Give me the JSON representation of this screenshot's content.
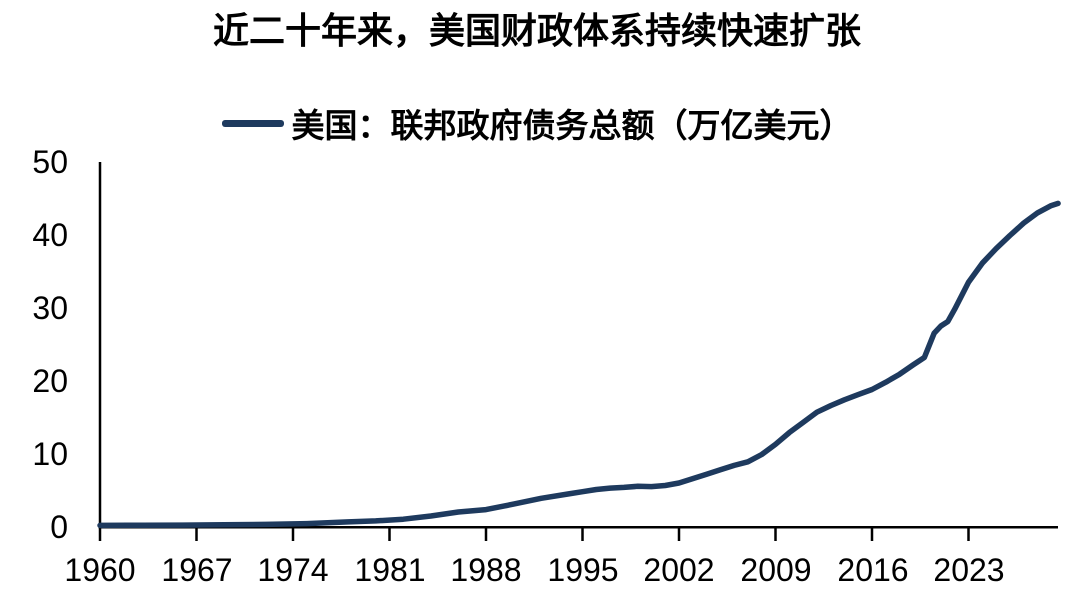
{
  "title": "近二十年来，美国财政体系持续快速扩张",
  "legend": {
    "label": "美国：联邦政府债务总额（万亿美元）"
  },
  "colors": {
    "line": "#1E3A5E",
    "axis": "#000000",
    "text": "#000000",
    "background": "#FFFFFF"
  },
  "chart_data": {
    "type": "line",
    "title": "近二十年来，美国财政体系持续快速扩张",
    "xlabel": "",
    "ylabel": "万亿美元",
    "xlim": [
      1960,
      2029.5
    ],
    "ylim": [
      0,
      50
    ],
    "grid": false,
    "legend_position": "top-center",
    "xticks": [
      1960,
      1967,
      1974,
      1981,
      1988,
      1995,
      2002,
      2009,
      2016,
      2023
    ],
    "xtick_labels": [
      "1960",
      "1967",
      "1974",
      "1981",
      "1988",
      "1995",
      "2002",
      "2009",
      "2016",
      "2023"
    ],
    "yticks": [
      0,
      10,
      20,
      30,
      40,
      50
    ],
    "ytick_labels": [
      "0",
      "10",
      "20",
      "30",
      "40",
      "50"
    ],
    "series": [
      {
        "name": "美国：联邦政府债务总额（万亿美元）",
        "color": "#1E3A5E",
        "points": [
          [
            1960,
            0.29
          ],
          [
            1963,
            0.31
          ],
          [
            1966,
            0.33
          ],
          [
            1969,
            0.37
          ],
          [
            1972,
            0.43
          ],
          [
            1975,
            0.54
          ],
          [
            1978,
            0.77
          ],
          [
            1980,
            0.91
          ],
          [
            1982,
            1.14
          ],
          [
            1984,
            1.57
          ],
          [
            1986,
            2.12
          ],
          [
            1988,
            2.45
          ],
          [
            1990,
            3.2
          ],
          [
            1992,
            4.0
          ],
          [
            1994,
            4.6
          ],
          [
            1995,
            4.9
          ],
          [
            1996,
            5.2
          ],
          [
            1997,
            5.4
          ],
          [
            1998,
            5.5
          ],
          [
            1999,
            5.65
          ],
          [
            2000,
            5.6
          ],
          [
            2001,
            5.75
          ],
          [
            2002,
            6.1
          ],
          [
            2003,
            6.7
          ],
          [
            2004,
            7.3
          ],
          [
            2005,
            7.9
          ],
          [
            2006,
            8.5
          ],
          [
            2007,
            9.0
          ],
          [
            2008,
            10.0
          ],
          [
            2009,
            11.4
          ],
          [
            2010,
            13.0
          ],
          [
            2011,
            14.4
          ],
          [
            2012,
            15.8
          ],
          [
            2013,
            16.7
          ],
          [
            2014,
            17.5
          ],
          [
            2015,
            18.2
          ],
          [
            2016,
            18.9
          ],
          [
            2017,
            19.9
          ],
          [
            2018,
            21.0
          ],
          [
            2019,
            22.3
          ],
          [
            2019.8,
            23.3
          ],
          [
            2020.5,
            26.6
          ],
          [
            2021,
            27.6
          ],
          [
            2021.5,
            28.2
          ],
          [
            2022,
            29.9
          ],
          [
            2023,
            33.6
          ],
          [
            2024,
            36.2
          ],
          [
            2025,
            38.2
          ],
          [
            2026,
            40.0
          ],
          [
            2027,
            41.7
          ],
          [
            2028,
            43.1
          ],
          [
            2029,
            44.1
          ],
          [
            2029.5,
            44.4
          ]
        ]
      }
    ]
  }
}
